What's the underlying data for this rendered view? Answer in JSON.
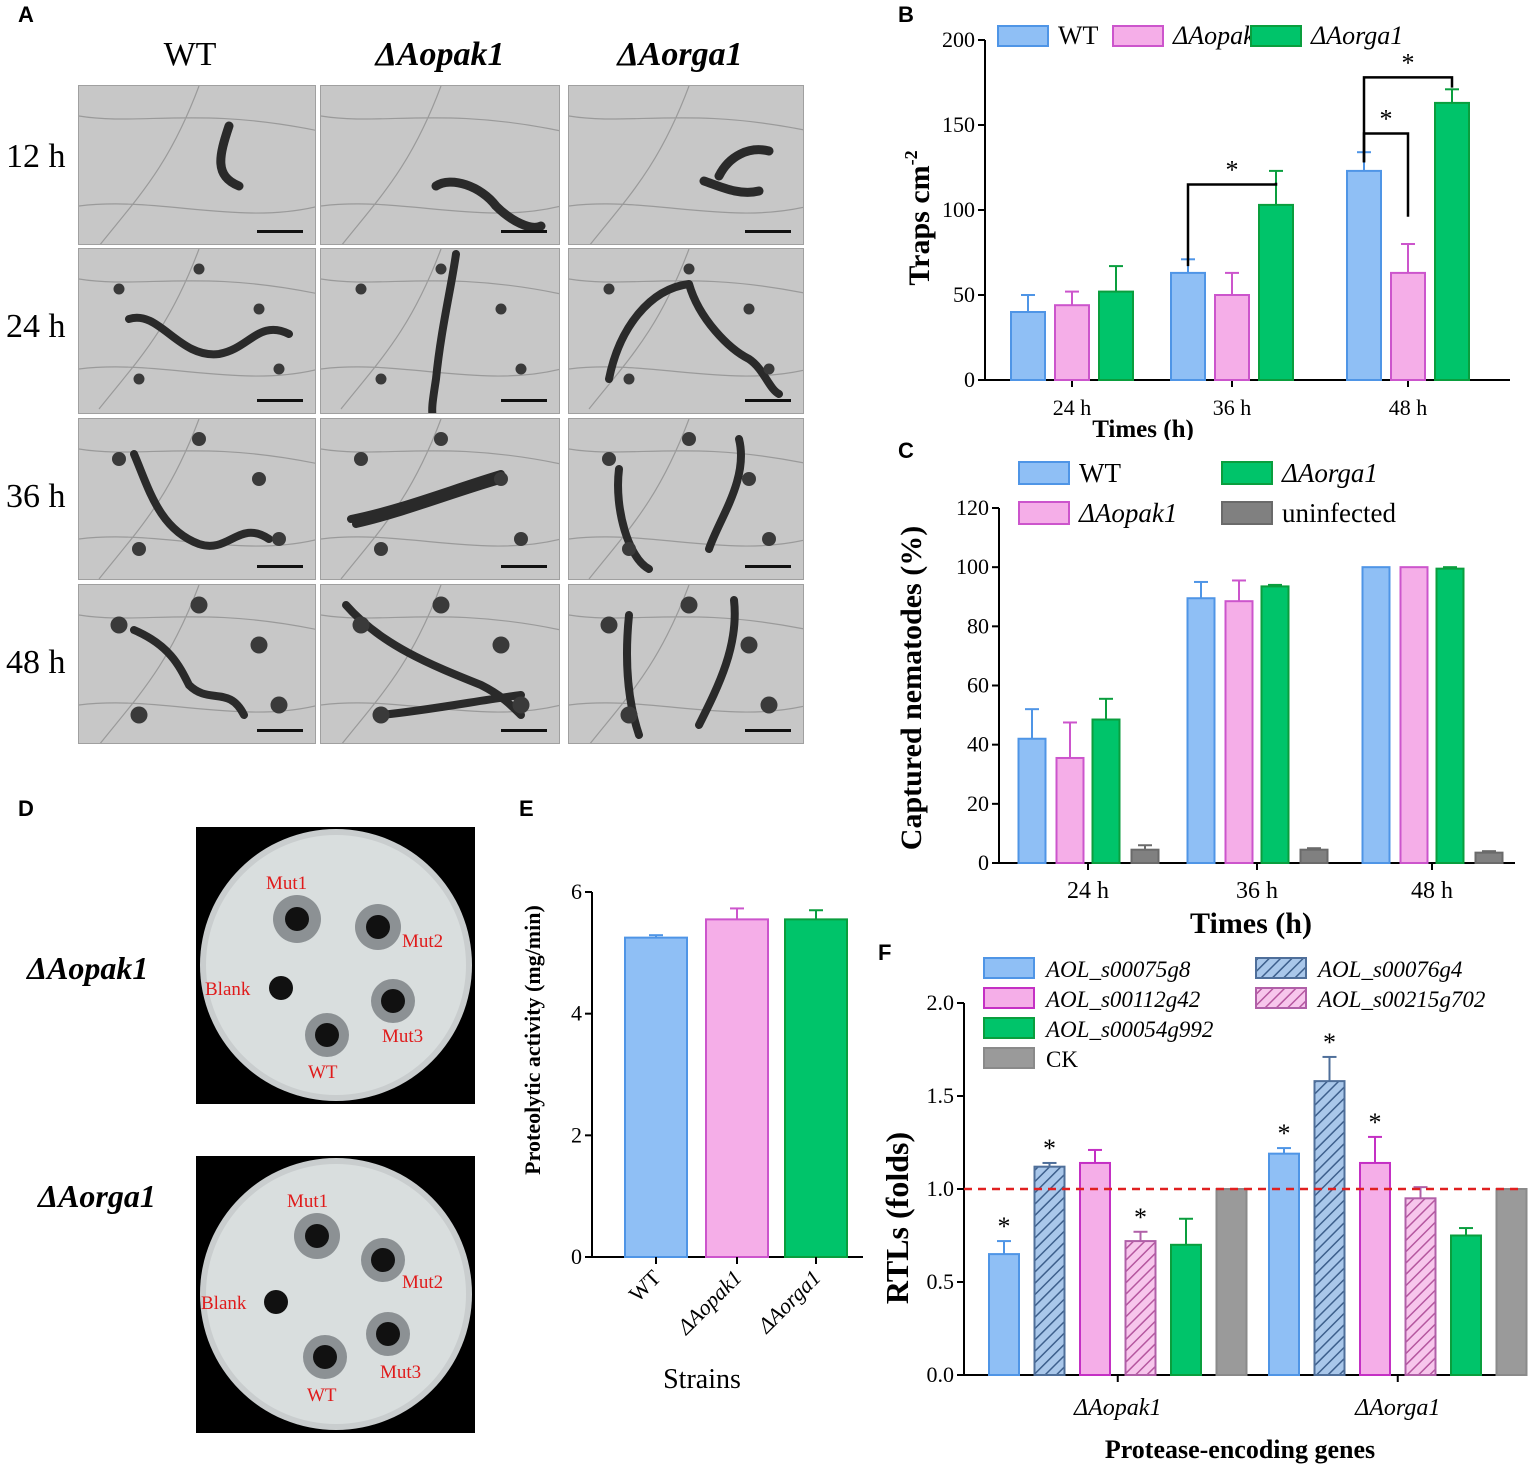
{
  "panel_labels": {
    "a": "A",
    "b": "B",
    "c": "C",
    "d": "D",
    "e": "E",
    "f": "F"
  },
  "panel_a": {
    "columns": [
      "WT",
      "ΔAopak1",
      "ΔAorga1"
    ],
    "rows": [
      "12 h",
      "24 h",
      "36 h",
      "48 h"
    ]
  },
  "panel_d": {
    "plates": [
      {
        "strain": "ΔAopak1",
        "wells": {
          "mut1": "Mut1",
          "mut2": "Mut2",
          "mut3": "Mut3",
          "blank": "Blank",
          "wt": "WT"
        }
      },
      {
        "strain": "ΔAorga1",
        "wells": {
          "mut1": "Mut1",
          "mut2": "Mut2",
          "mut3": "Mut3",
          "blank": "Blank",
          "wt": "WT"
        }
      }
    ]
  },
  "colors": {
    "wt": "#8fbff5",
    "wt_edge": "#4f95e6",
    "pak": "#f5aee8",
    "pak_edge": "#cc55cc",
    "rga": "#00c46a",
    "rga_edge": "#0a9e3e",
    "unin": "#808080",
    "sig": "#000000",
    "ref": "#e02020"
  },
  "chart_data": [
    {
      "id": "B",
      "type": "bar",
      "xlabel": "Times (h)",
      "ylabel": "Traps cm",
      "ylabel_sup": "-2",
      "categories": [
        "24 h",
        "36 h",
        "48 h"
      ],
      "ylim": [
        0,
        200
      ],
      "yticks": [
        "0",
        "50",
        "100",
        "150",
        "200"
      ],
      "legend": [
        "WT",
        "ΔAopak",
        "ΔAorga1"
      ],
      "series": [
        {
          "name": "WT",
          "values": [
            40,
            63,
            123
          ],
          "err": [
            10,
            8,
            11
          ]
        },
        {
          "name": "ΔAopak",
          "values": [
            44,
            50,
            63
          ],
          "err": [
            8,
            13,
            17
          ]
        },
        {
          "name": "ΔAorga1",
          "values": [
            52,
            103,
            163
          ],
          "err": [
            15,
            20,
            8
          ]
        }
      ],
      "significance": [
        "*",
        "*",
        "*"
      ]
    },
    {
      "id": "C",
      "type": "bar",
      "xlabel": "Times (h)",
      "ylabel": "Captured nematodes (%)",
      "categories": [
        "24 h",
        "36 h",
        "48 h"
      ],
      "ylim": [
        0,
        120
      ],
      "yticks": [
        "0",
        "20",
        "40",
        "60",
        "80",
        "100",
        "120"
      ],
      "legend": [
        "WT",
        "ΔAorga1",
        "ΔAopak1",
        "uninfected"
      ],
      "series": [
        {
          "name": "WT",
          "values": [
            42,
            89.5,
            100
          ],
          "err": [
            10,
            5.5,
            0
          ]
        },
        {
          "name": "ΔAopak1",
          "values": [
            35.5,
            88.5,
            100
          ],
          "err": [
            12,
            7,
            0
          ]
        },
        {
          "name": "ΔAorga1",
          "values": [
            48.5,
            93.5,
            99.5
          ],
          "err": [
            7,
            0.5,
            0.5
          ]
        },
        {
          "name": "uninfected",
          "values": [
            4.5,
            4.5,
            3.5
          ],
          "err": [
            1.5,
            0.5,
            0.5
          ]
        }
      ]
    },
    {
      "id": "E",
      "type": "bar",
      "xlabel": "Strains",
      "ylabel": "Proteolytic activity (mg/min)",
      "categories": [
        "WT",
        "ΔAopak1",
        "ΔAorga1"
      ],
      "ylim": [
        0,
        6
      ],
      "yticks": [
        "0",
        "2",
        "4",
        "6"
      ],
      "values": [
        5.25,
        5.55,
        5.55
      ],
      "err": [
        0.04,
        0.18,
        0.15
      ]
    },
    {
      "id": "F",
      "type": "bar",
      "xlabel": "Protease-encoding genes",
      "ylabel": "RTLs (folds)",
      "categories": [
        "ΔAopak1",
        "ΔAorga1"
      ],
      "ylim": [
        0,
        2
      ],
      "yticks": [
        "0.0",
        "0.5",
        "1.0",
        "1.5",
        "2.0"
      ],
      "reference_line": 1.0,
      "legend": [
        "AOL_s00075g8",
        "AOL_s00076g4",
        "AOL_s00112g42",
        "AOL_s00215g702",
        "AOL_s00054g992",
        "CK"
      ],
      "series": [
        {
          "name": "AOL_s00075g8",
          "values": [
            0.65,
            1.19
          ],
          "err": [
            0.07,
            0.03
          ],
          "sig": [
            "*",
            "*"
          ]
        },
        {
          "name": "AOL_s00076g4",
          "values": [
            1.12,
            1.58
          ],
          "err": [
            0.02,
            0.13
          ],
          "sig": [
            "*",
            "*"
          ]
        },
        {
          "name": "AOL_s00112g42",
          "values": [
            1.14,
            1.14
          ],
          "err": [
            0.07,
            0.14
          ],
          "sig": [
            "",
            "*"
          ]
        },
        {
          "name": "AOL_s00215g702",
          "values": [
            0.72,
            0.95
          ],
          "err": [
            0.05,
            0.06
          ],
          "sig": [
            "*",
            ""
          ]
        },
        {
          "name": "AOL_s00054g992",
          "values": [
            0.7,
            0.75
          ],
          "err": [
            0.14,
            0.04
          ],
          "sig": [
            "",
            ""
          ]
        },
        {
          "name": "CK",
          "values": [
            1.0,
            1.0
          ],
          "err": [
            0,
            0
          ],
          "sig": [
            "",
            ""
          ]
        }
      ]
    }
  ]
}
